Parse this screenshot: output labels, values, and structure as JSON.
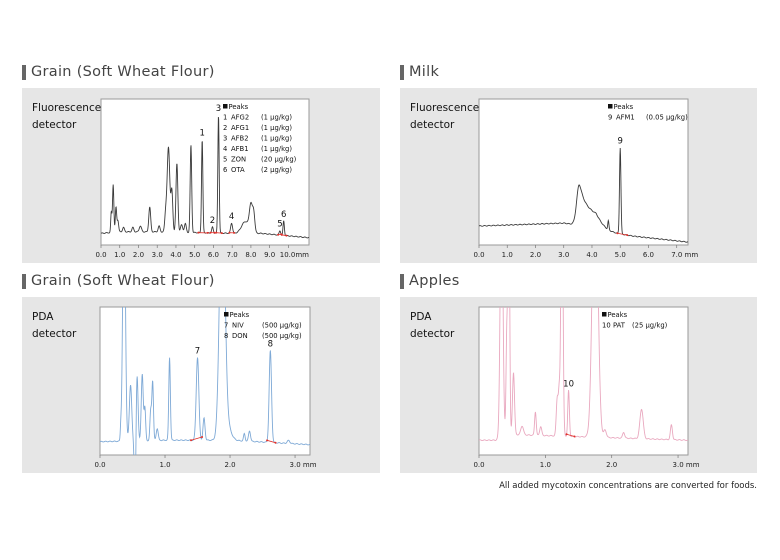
{
  "footnote": "All added mycotoxin concentrations are converted for foods.",
  "chart_data": [
    {
      "type": "line",
      "title": "Grain (Soft Wheat Flour)",
      "detector": [
        "Fluorescence",
        "detector"
      ],
      "xlabel_unit": "mm",
      "xlim": [
        0,
        11.1
      ],
      "ylim": [
        0,
        100
      ],
      "xticks": [
        "0.0",
        "1.0",
        "2.0",
        "3.0",
        "4.0",
        "5.0",
        "6.0",
        "7.0",
        "8.0",
        "9.0",
        "10.0mm"
      ],
      "color": "#3a3a3a",
      "baseline": [
        [
          0,
          8
        ],
        [
          1,
          9
        ],
        [
          3,
          9
        ],
        [
          7,
          8
        ],
        [
          8.5,
          8
        ],
        [
          11.1,
          5
        ]
      ],
      "peaks": [
        [
          0.55,
          14,
          0.03
        ],
        [
          0.65,
          33,
          0.035
        ],
        [
          0.8,
          17,
          0.035
        ],
        [
          0.9,
          8,
          0.04
        ],
        [
          1.2,
          3,
          0.05
        ],
        [
          1.7,
          3,
          0.05
        ],
        [
          2.1,
          4,
          0.06
        ],
        [
          2.6,
          17,
          0.05
        ],
        [
          3.1,
          4,
          0.05
        ],
        [
          3.45,
          12,
          0.05
        ],
        [
          3.6,
          58,
          0.07
        ],
        [
          3.78,
          28,
          0.05
        ],
        [
          4.05,
          47,
          0.05
        ],
        [
          4.3,
          5,
          0.06
        ],
        [
          4.5,
          6,
          0.05
        ],
        [
          4.8,
          60,
          0.04
        ],
        [
          5.4,
          64,
          0.035
        ],
        [
          5.95,
          4,
          0.04
        ],
        [
          6.27,
          81,
          0.035
        ],
        [
          6.97,
          7,
          0.05
        ],
        [
          7.7,
          8,
          0.2
        ],
        [
          8.0,
          18,
          0.08
        ],
        [
          8.15,
          13,
          0.06
        ],
        [
          9.55,
          3,
          0.04
        ],
        [
          9.75,
          10,
          0.035
        ]
      ],
      "integration_marks": [
        [
          5.2,
          5.7
        ],
        [
          5.85,
          6.05
        ],
        [
          6.15,
          6.45
        ],
        [
          6.85,
          7.1
        ],
        [
          9.45,
          9.62
        ],
        [
          9.65,
          9.9
        ]
      ],
      "peak_labels": [
        {
          "num": "1",
          "t": 5.4
        },
        {
          "num": "2",
          "t": 5.95
        },
        {
          "num": "3",
          "t": 6.27
        },
        {
          "num": "4",
          "t": 6.97
        },
        {
          "num": "5",
          "t": 9.55
        },
        {
          "num": "6",
          "t": 9.75
        }
      ],
      "legend_position": "top-right",
      "legend_title": "Peaks",
      "legend": [
        [
          "1",
          "AFG2",
          "(1 µg/kg)"
        ],
        [
          "2",
          "AFG1",
          "(1 µg/kg)"
        ],
        [
          "3",
          "AFB2",
          "(1 µg/kg)"
        ],
        [
          "4",
          "AFB1",
          "(1 µg/kg)"
        ],
        [
          "5",
          "ZON",
          "(20 µg/kg)"
        ],
        [
          "6",
          "OTA",
          "(2 µg/kg)"
        ]
      ]
    },
    {
      "type": "line",
      "title": "Milk",
      "detector": [
        "Fluorescence",
        "detector"
      ],
      "xlabel_unit": "mm",
      "xlim": [
        0,
        7.4
      ],
      "ylim": [
        0,
        100
      ],
      "xticks": [
        "0.0",
        "1.0",
        "2.0",
        "3.0",
        "4.0",
        "5.0",
        "6.0",
        "7.0 mm"
      ],
      "color": "#3a3a3a",
      "baseline": [
        [
          0,
          13
        ],
        [
          3,
          15
        ],
        [
          3.4,
          14
        ],
        [
          4.5,
          9
        ],
        [
          5.5,
          6
        ],
        [
          7.4,
          2
        ]
      ],
      "peaks": [
        [
          3.55,
          28,
          0.09,
          0.35
        ],
        [
          4.58,
          6,
          0.02
        ],
        [
          5.0,
          59,
          0.025
        ]
      ],
      "integration_marks": [
        [
          4.9,
          5.25
        ]
      ],
      "peak_labels": [
        {
          "num": "9",
          "t": 5.0
        }
      ],
      "legend_position": "top-right",
      "legend_title": "Peaks",
      "legend": [
        [
          "9",
          "AFM1",
          "(0.05 µg/kg)"
        ]
      ]
    },
    {
      "type": "line",
      "title": "Grain (Soft Wheat Flour)",
      "detector": [
        "PDA",
        "detector"
      ],
      "xlabel_unit": "mm",
      "xlim": [
        0,
        3.23
      ],
      "ylim": [
        0,
        100
      ],
      "xticks": [
        "0.0",
        "1.0",
        "2.0",
        "3.0 mm"
      ],
      "color": "#7ea9d6",
      "baseline": [
        [
          0,
          9
        ],
        [
          1,
          10
        ],
        [
          2,
          10
        ],
        [
          3.23,
          7
        ]
      ],
      "peaks": [
        [
          0.32,
          8,
          0.008
        ],
        [
          0.37,
          180,
          0.02
        ],
        [
          0.47,
          38,
          0.018
        ],
        [
          0.54,
          -45,
          0.012
        ],
        [
          0.57,
          45,
          0.015
        ],
        [
          0.65,
          45,
          0.015
        ],
        [
          0.69,
          22,
          0.012
        ],
        [
          0.78,
          20,
          0.012
        ],
        [
          0.81,
          40,
          0.012
        ],
        [
          0.88,
          8,
          0.015
        ],
        [
          1.07,
          56,
          0.012
        ],
        [
          1.5,
          56,
          0.02
        ],
        [
          1.6,
          15,
          0.015
        ],
        [
          1.88,
          180,
          0.04
        ],
        [
          1.95,
          10,
          0.06
        ],
        [
          2.22,
          5,
          0.012
        ],
        [
          2.3,
          7,
          0.015
        ],
        [
          2.62,
          62,
          0.018
        ],
        [
          2.9,
          2,
          0.02
        ]
      ],
      "integration_marks": [
        [
          1.4,
          1.57
        ],
        [
          2.57,
          2.7
        ]
      ],
      "peak_labels": [
        {
          "num": "7",
          "t": 1.5
        },
        {
          "num": "8",
          "t": 2.62
        }
      ],
      "legend_position": "top-right",
      "legend_title": "Peaks",
      "legend": [
        [
          "7",
          "NIV",
          "(500 µg/kg)"
        ],
        [
          "8",
          "DON",
          "(500 µg/kg)"
        ]
      ]
    },
    {
      "type": "line",
      "title": "Apples",
      "detector": [
        "PDA",
        "detector"
      ],
      "xlabel_unit": "mm",
      "xlim": [
        0,
        3.15
      ],
      "ylim": [
        0,
        100
      ],
      "xticks": [
        "0.0",
        "1.0",
        "2.0",
        "3.0 mm"
      ],
      "color": "#e9a8bf",
      "baseline": [
        [
          0,
          10
        ],
        [
          0.25,
          10
        ],
        [
          0.4,
          14
        ],
        [
          3.15,
          10
        ]
      ],
      "peaks": [
        [
          0.34,
          180,
          0.02
        ],
        [
          0.42,
          70,
          0.012
        ],
        [
          0.45,
          180,
          0.012
        ],
        [
          0.52,
          42,
          0.015
        ],
        [
          0.65,
          6,
          0.02
        ],
        [
          0.85,
          16,
          0.012
        ],
        [
          0.93,
          6,
          0.015
        ],
        [
          1.18,
          26,
          0.015
        ],
        [
          1.21,
          28,
          0.012
        ],
        [
          1.25,
          200,
          0.015
        ],
        [
          1.35,
          31,
          0.012
        ],
        [
          1.75,
          200,
          0.04
        ],
        [
          1.9,
          5,
          0.02
        ],
        [
          2.18,
          4,
          0.015
        ],
        [
          2.45,
          20,
          0.025
        ],
        [
          2.9,
          10,
          0.015
        ]
      ],
      "integration_marks": [
        [
          1.32,
          1.44
        ]
      ],
      "peak_labels": [
        {
          "num": "10",
          "t": 1.35
        }
      ],
      "legend_position": "top-right",
      "legend_title": "Peaks",
      "legend": [
        [
          "10",
          "PAT",
          "(25 µg/kg)"
        ]
      ]
    }
  ]
}
